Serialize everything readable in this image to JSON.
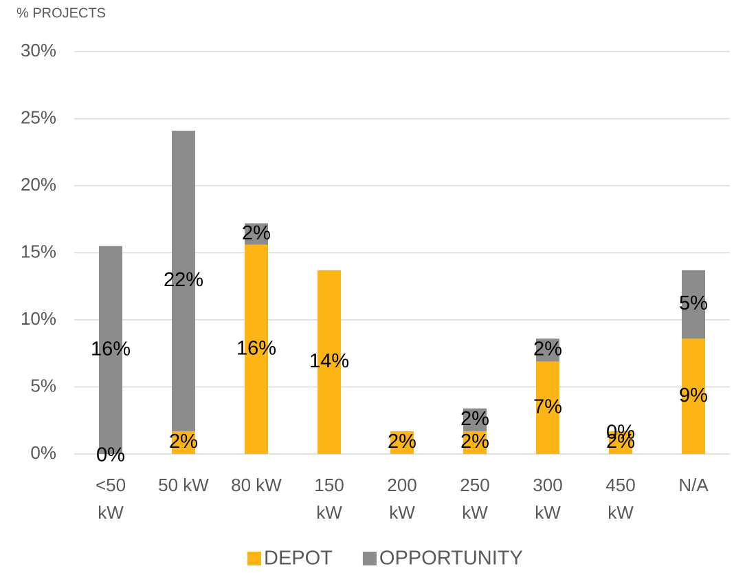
{
  "chart_data": {
    "type": "stacked_bar",
    "y_axis_label": "% PROJECTS",
    "categories": [
      "<50 kW",
      "50 kW",
      "80 kW",
      "150 kW",
      "200 kW",
      "250 kW",
      "300 kW",
      "450 kW",
      "N/A"
    ],
    "series": [
      {
        "name": "DEPOT",
        "color": "#FDB515",
        "values": [
          0,
          1.7,
          15.6,
          13.7,
          1.7,
          1.7,
          6.9,
          1.7,
          8.6
        ],
        "value_labels": [
          "0%",
          "2%",
          "16%",
          "14%",
          "2%",
          "2%",
          "7%",
          "2%",
          "9%"
        ]
      },
      {
        "name": "OPPORTUNITY",
        "color": "#8C8C8C",
        "values": [
          15.5,
          22.4,
          1.6,
          null,
          null,
          1.7,
          1.7,
          0,
          5.1
        ],
        "value_labels": [
          "16%",
          "22%",
          "2%",
          null,
          null,
          "2%",
          "2%",
          "0%",
          "5%"
        ]
      }
    ],
    "ylim": [
      0,
      30
    ],
    "yticks": [
      {
        "value": 0,
        "label": "0%"
      },
      {
        "value": 5,
        "label": "5%"
      },
      {
        "value": 10,
        "label": "10%"
      },
      {
        "value": 15,
        "label": "15%"
      },
      {
        "value": 20,
        "label": "20%"
      },
      {
        "value": 25,
        "label": "25%"
      },
      {
        "value": 30,
        "label": "30%"
      }
    ],
    "grid": true,
    "legend": "bottom"
  }
}
